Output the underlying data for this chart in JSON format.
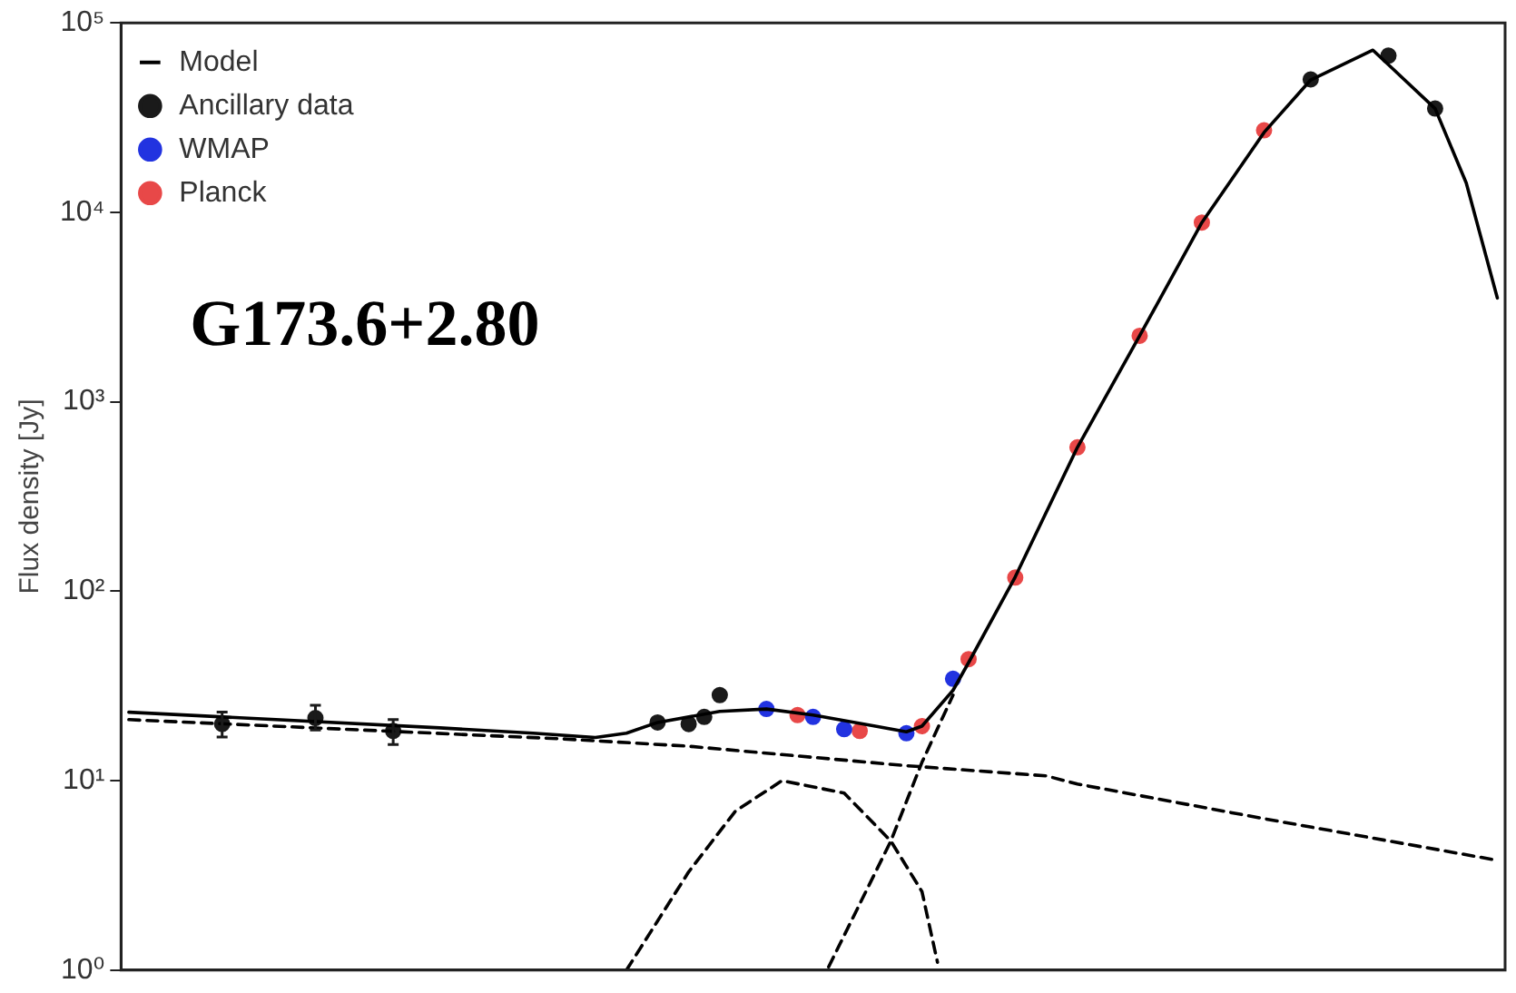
{
  "chart_data": {
    "type": "scatter",
    "ylabel": "Flux density [Jy]",
    "annotations": [
      "G173.6+2.80"
    ],
    "log": "y",
    "grid": false,
    "legend": "top left",
    "tick_labels": "y",
    "categories": [
      null,
      null,
      null,
      null,
      null,
      null,
      null,
      null,
      null,
      null,
      null,
      null,
      null,
      null,
      null,
      null,
      null,
      null,
      null,
      null,
      null,
      null,
      null,
      null,
      null,
      null,
      null,
      null,
      null,
      null,
      null,
      null,
      null,
      null,
      null,
      null,
      null,
      null,
      null,
      null,
      null,
      null,
      null,
      null,
      null,
      null,
      null,
      null,
      null,
      null,
      null,
      null,
      null,
      null,
      null,
      null,
      null,
      null,
      null,
      null,
      null,
      null,
      null,
      null,
      null,
      null,
      null,
      null,
      null,
      null,
      null,
      null,
      null,
      null,
      null,
      null,
      null,
      null,
      null,
      null,
      null,
      null,
      null,
      null,
      null,
      null,
      null,
      null,
      null
    ],
    "ylim": [
      1,
      100000
    ],
    "yticks": [
      {
        "value": 1,
        "label": "10⁰"
      },
      {
        "value": 10,
        "label": "10¹"
      },
      {
        "value": 100,
        "label": "10²"
      },
      {
        "value": 1000,
        "label": "10³"
      },
      {
        "value": 10000,
        "label": "10⁴"
      },
      {
        "value": 100000,
        "label": "10⁵"
      }
    ],
    "series": [
      {
        "type": "line",
        "color": "#000000",
        "line_style": "dashed",
        "marker": "none",
        "values": [
          21.0,
          null,
          null,
          null,
          null,
          null,
          null,
          null,
          null,
          null,
          null,
          null,
          null,
          null,
          null,
          null,
          null,
          null,
          null,
          null,
          null,
          null,
          null,
          null,
          null,
          null,
          null,
          null,
          16.6,
          null,
          null,
          null,
          null,
          null,
          null,
          null,
          15.2,
          null,
          null,
          null,
          null,
          null,
          null,
          null,
          null,
          null,
          null,
          null,
          null,
          null,
          12.0,
          null,
          null,
          null,
          null,
          null,
          null,
          null,
          null,
          10.6,
          null,
          9.6,
          null,
          null,
          null,
          null,
          null,
          null,
          null,
          null,
          null,
          null,
          null,
          6.3,
          null,
          null,
          null,
          null,
          null,
          null,
          null,
          null,
          null,
          null,
          null,
          null,
          null,
          null,
          3.8
        ]
      },
      {
        "type": "line",
        "color": "#000000",
        "line_style": "dashed",
        "marker": "none",
        "values": [
          null,
          null,
          null,
          null,
          null,
          null,
          null,
          null,
          null,
          null,
          null,
          null,
          null,
          null,
          null,
          null,
          null,
          null,
          null,
          null,
          null,
          null,
          null,
          null,
          null,
          null,
          null,
          null,
          null,
          null,
          null,
          null,
          1.0,
          null,
          null,
          null,
          3.3,
          null,
          null,
          6.9,
          null,
          null,
          10,
          null,
          null,
          null,
          8.6,
          null,
          null,
          4.8,
          null,
          2.6,
          1.1,
          null,
          null,
          null,
          null,
          null,
          null,
          null,
          null,
          null,
          null,
          null,
          null,
          null,
          null,
          null,
          null,
          null,
          null,
          null,
          null,
          null,
          null,
          null,
          null,
          null,
          null,
          null,
          null,
          null,
          null,
          null,
          null,
          null,
          null,
          null,
          null
        ]
      },
      {
        "type": "line",
        "color": "#000000",
        "line_style": "dashed",
        "marker": "none",
        "values": [
          null,
          null,
          null,
          null,
          null,
          null,
          null,
          null,
          null,
          null,
          null,
          null,
          null,
          null,
          null,
          null,
          null,
          null,
          null,
          null,
          null,
          null,
          null,
          null,
          null,
          null,
          null,
          null,
          null,
          null,
          null,
          null,
          null,
          null,
          null,
          null,
          null,
          null,
          null,
          null,
          null,
          null,
          null,
          null,
          null,
          1.04,
          null,
          null,
          null,
          4.8,
          null,
          12.5,
          null,
          28.3,
          null,
          null,
          null,
          null,
          null,
          null,
          null,
          null,
          null,
          null,
          null,
          null,
          null,
          null,
          null,
          null,
          null,
          null,
          null,
          null,
          null,
          null,
          null,
          null,
          null,
          null,
          null,
          null,
          null,
          null,
          null,
          null,
          null,
          null,
          null
        ]
      },
      {
        "type": "line",
        "name": "Model",
        "color": "#000000",
        "line_style": "solid",
        "marker": "none",
        "values": [
          23.0,
          null,
          null,
          null,
          null,
          null,
          null,
          null,
          null,
          null,
          null,
          null,
          null,
          null,
          null,
          null,
          null,
          null,
          null,
          null,
          19.0,
          null,
          null,
          null,
          null,
          null,
          17.8,
          null,
          null,
          null,
          16.9,
          null,
          17.8,
          null,
          20.3,
          null,
          null,
          null,
          23.2,
          null,
          null,
          23.9,
          null,
          null,
          22.2,
          null,
          null,
          null,
          19.4,
          null,
          18.1,
          19.4,
          null,
          30,
          42,
          null,
          null,
          119,
          null,
          null,
          null,
          575,
          null,
          null,
          null,
          2230,
          null,
          null,
          null,
          8830,
          null,
          null,
          null,
          26400,
          null,
          null,
          50000,
          null,
          null,
          null,
          71800,
          null,
          null,
          null,
          35300,
          null,
          14300,
          null,
          3530
        ]
      },
      {
        "name": "Ancillary data",
        "color": "#1a1a1a",
        "marker": "circle",
        "values": [
          null,
          null,
          null,
          null,
          null,
          null,
          19.9,
          null,
          null,
          null,
          null,
          null,
          21.4,
          null,
          null,
          null,
          null,
          18.3,
          null,
          null,
          null,
          null,
          null,
          null,
          null,
          null,
          null,
          null,
          null,
          null,
          null,
          null,
          null,
          null,
          20.3,
          null,
          19.9,
          21.7,
          28.3,
          null,
          null,
          null,
          null,
          null,
          null,
          null,
          null,
          null,
          null,
          null,
          null,
          null,
          null,
          null,
          null,
          null,
          null,
          null,
          null,
          null,
          null,
          null,
          null,
          null,
          null,
          null,
          null,
          null,
          null,
          null,
          null,
          null,
          null,
          null,
          null,
          null,
          50300,
          null,
          null,
          null,
          null,
          67100,
          null,
          null,
          35300,
          null,
          null,
          null,
          null
        ],
        "errors": [
          null,
          null,
          null,
          null,
          null,
          null,
          [
            17,
            23
          ],
          null,
          null,
          null,
          null,
          null,
          [
            18.5,
            25
          ],
          null,
          null,
          null,
          null,
          [
            15.5,
            21
          ],
          null,
          null,
          null,
          null,
          null,
          null,
          null,
          null,
          null,
          null,
          null,
          null,
          null,
          null,
          null,
          null,
          null,
          null,
          null,
          null,
          null,
          null,
          null,
          null,
          null,
          null,
          null,
          null,
          null,
          null,
          null,
          null,
          null,
          null,
          null,
          null,
          null,
          null,
          null,
          null,
          null,
          null,
          null,
          null,
          null,
          null,
          null,
          null,
          null,
          null,
          null,
          null,
          null,
          null,
          null,
          null,
          null,
          null,
          null,
          null,
          null,
          null,
          null,
          null,
          null,
          null,
          null,
          null,
          null,
          null,
          null
        ]
      },
      {
        "name": "WMAP",
        "color": "#2233e0",
        "marker": "circle",
        "values": [
          null,
          null,
          null,
          null,
          null,
          null,
          null,
          null,
          null,
          null,
          null,
          null,
          null,
          null,
          null,
          null,
          null,
          null,
          null,
          null,
          null,
          null,
          null,
          null,
          null,
          null,
          null,
          null,
          null,
          null,
          null,
          null,
          null,
          null,
          null,
          null,
          null,
          null,
          null,
          null,
          null,
          23.9,
          null,
          null,
          21.7,
          null,
          18.7,
          null,
          null,
          null,
          17.8,
          null,
          null,
          34.5,
          null,
          null,
          null,
          null,
          null,
          null,
          null,
          null,
          null,
          null,
          null,
          null,
          null,
          null,
          null,
          null,
          null,
          null,
          null,
          null,
          null,
          null,
          null,
          null,
          null,
          null,
          null,
          null,
          null,
          null,
          null,
          null,
          null,
          null,
          null
        ]
      },
      {
        "name": "Planck",
        "color": "#e84848",
        "marker": "circle",
        "values": [
          null,
          null,
          null,
          null,
          null,
          null,
          null,
          null,
          null,
          null,
          null,
          null,
          null,
          null,
          null,
          null,
          null,
          null,
          null,
          null,
          null,
          null,
          null,
          null,
          null,
          null,
          null,
          null,
          null,
          null,
          null,
          null,
          null,
          null,
          null,
          null,
          null,
          null,
          null,
          null,
          null,
          null,
          null,
          22.2,
          null,
          null,
          null,
          18.3,
          null,
          null,
          null,
          19.4,
          null,
          null,
          43.8,
          null,
          null,
          118,
          null,
          null,
          null,
          575,
          null,
          null,
          null,
          2230,
          null,
          null,
          null,
          8830,
          null,
          null,
          null,
          27100,
          null,
          null,
          null,
          null,
          null,
          null,
          null,
          null,
          null,
          null,
          null,
          null,
          null,
          null,
          null
        ]
      }
    ]
  }
}
